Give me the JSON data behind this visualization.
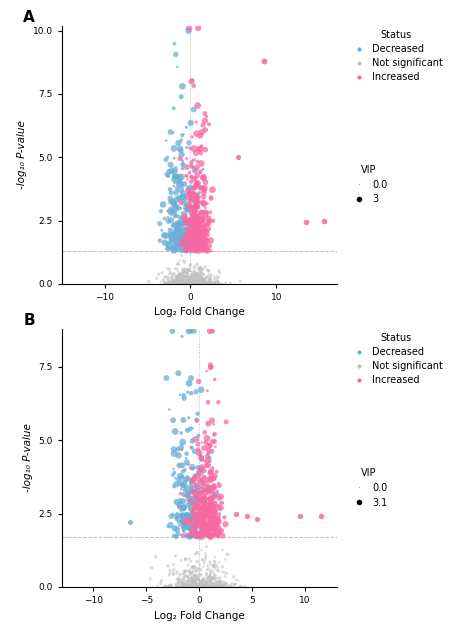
{
  "panel_A": {
    "xlim": [
      -15,
      17
    ],
    "ylim": [
      0,
      10.2
    ],
    "xticks": [
      -10,
      0,
      10
    ],
    "yticks": [
      0.0,
      2.5,
      5.0,
      7.5,
      10.0
    ],
    "xlabel": "Log₂ Fold Change",
    "ylabel": "-log₁₀ P-value",
    "hline_y": 1.3,
    "vline_x": 0,
    "label": "A",
    "vip_max": 3.0,
    "legend_vip": "3"
  },
  "panel_B": {
    "xlim": [
      -13,
      13
    ],
    "ylim": [
      0,
      8.8
    ],
    "xticks": [
      -10,
      -5,
      0,
      5,
      10
    ],
    "yticks": [
      0.0,
      2.5,
      5.0,
      7.5
    ],
    "xlabel": "Log₂ Fold Change",
    "ylabel": "-log₁₀ P-value",
    "hline_y": 1.7,
    "vline_x": 0,
    "label": "B",
    "vip_max": 3.1,
    "legend_vip": "3.1"
  },
  "colors": {
    "decreased": "#6baed6",
    "not_significant": "#c0c0c0",
    "increased": "#f768a1",
    "hline": "#aaaaaa",
    "vline": "#aaaaaa"
  },
  "background": "#ffffff",
  "legend_fontsize": 7,
  "axis_fontsize": 7.5,
  "tick_fontsize": 6.5
}
